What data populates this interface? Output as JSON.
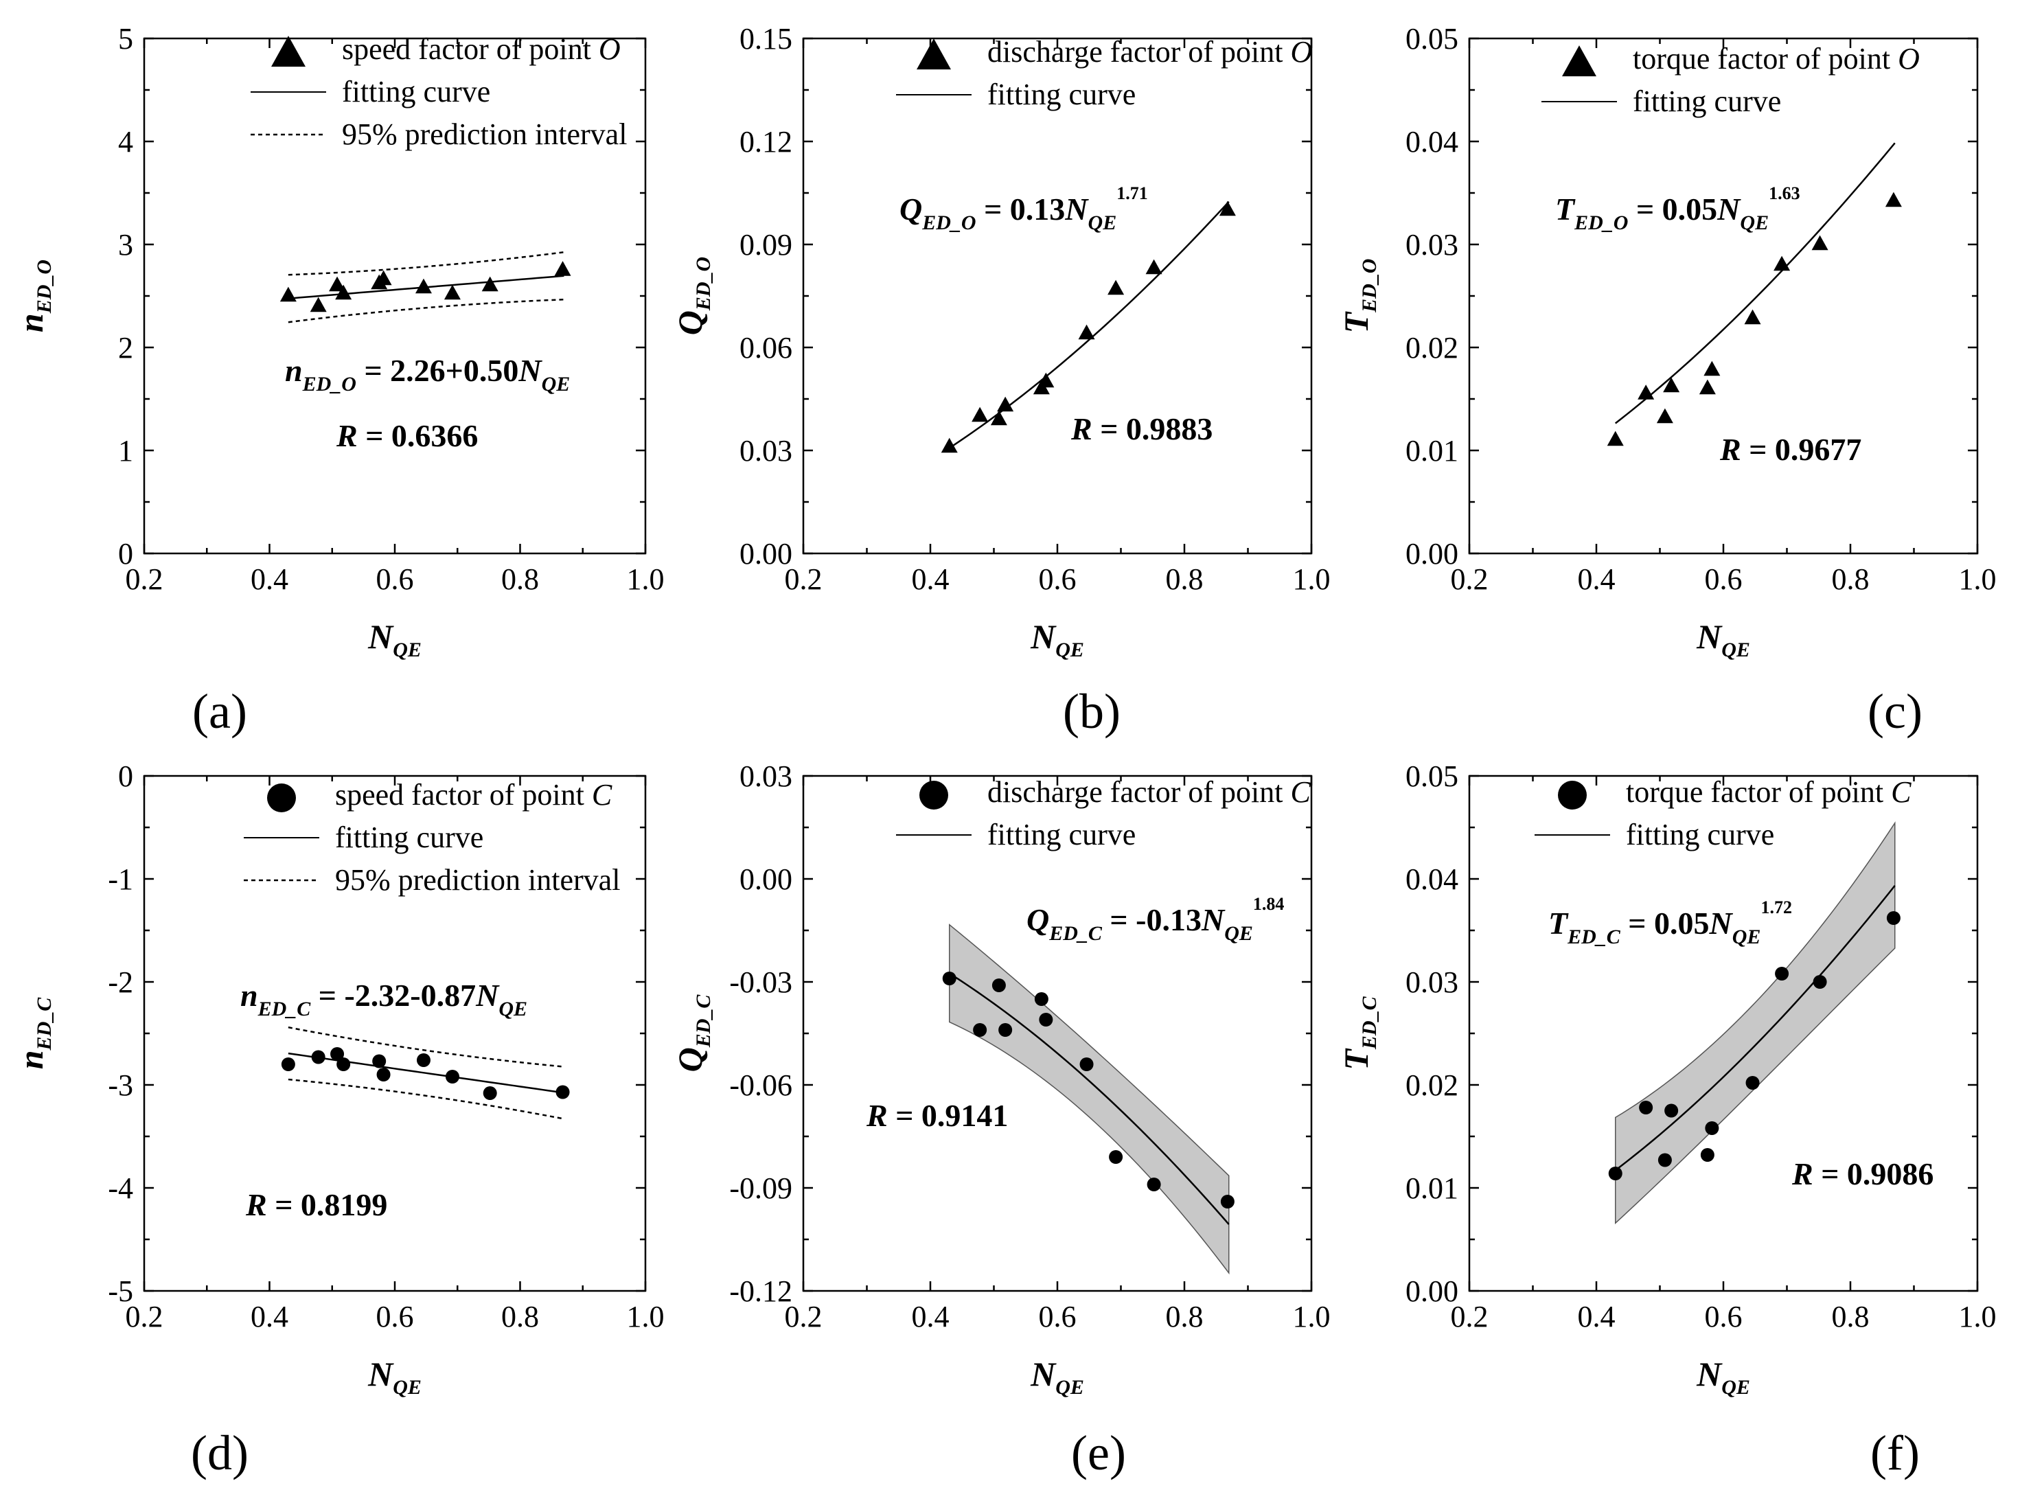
{
  "chart_data": [
    {
      "panel": "a",
      "type": "scatter",
      "panel_label": "(a)",
      "xlabel": "N",
      "xlabel_sub": "QE",
      "ylabel": "n",
      "ylabel_sub": "ED_O",
      "xlim": [
        0.2,
        1.0
      ],
      "ylim": [
        0,
        5
      ],
      "x_ticks": [
        "0.2",
        "0.4",
        "0.6",
        "0.8",
        "1.0"
      ],
      "y_ticks": [
        "0",
        "1",
        "2",
        "3",
        "4",
        "5"
      ],
      "marker": "triangle",
      "points": {
        "x": [
          0.43,
          0.478,
          0.508,
          0.518,
          0.575,
          0.582,
          0.646,
          0.692,
          0.752,
          0.868
        ],
        "y": [
          2.5,
          2.4,
          2.6,
          2.52,
          2.62,
          2.66,
          2.58,
          2.52,
          2.6,
          2.75
        ]
      },
      "fit": {
        "model": "linear",
        "a": 2.26,
        "b": 0.5,
        "x_range": [
          0.43,
          0.87
        ]
      },
      "band": {
        "style": "dashed",
        "half_width": [
          0.2,
          0.2
        ]
      },
      "legend": [
        {
          "symbol": "triangle",
          "text": "speed factor of point ",
          "italic": "O"
        },
        {
          "symbol": "line",
          "text": "fitting curve"
        },
        {
          "symbol": "dashed",
          "text": "95% prediction interval"
        }
      ],
      "equation": {
        "sym": "n",
        "sym_sub": "ED_O",
        "rhs": " = 2.26+0.50",
        "var": "N",
        "var_sub": "QE",
        "exp": ""
      },
      "r_label": "R",
      "r_text": " = 0.6366"
    },
    {
      "panel": "b",
      "type": "scatter",
      "panel_label": "(b)",
      "xlabel": "N",
      "xlabel_sub": "QE",
      "ylabel": "Q",
      "ylabel_sub": "ED_O",
      "xlim": [
        0.2,
        1.0
      ],
      "ylim": [
        0,
        0.15
      ],
      "x_ticks": [
        "0.2",
        "0.4",
        "0.6",
        "0.8",
        "1.0"
      ],
      "y_ticks": [
        "0.00",
        "0.03",
        "0.06",
        "0.09",
        "0.12",
        "0.15"
      ],
      "marker": "triangle",
      "points": {
        "x": [
          0.43,
          0.478,
          0.508,
          0.518,
          0.575,
          0.582,
          0.646,
          0.692,
          0.752,
          0.868
        ],
        "y": [
          0.031,
          0.04,
          0.039,
          0.043,
          0.048,
          0.05,
          0.064,
          0.077,
          0.083,
          0.1
        ]
      },
      "fit": {
        "model": "power",
        "a": 0.13,
        "b": 1.71,
        "x_range": [
          0.43,
          0.87
        ]
      },
      "band": null,
      "legend": [
        {
          "symbol": "triangle",
          "text": "discharge factor of point ",
          "italic": "O"
        },
        {
          "symbol": "line",
          "text": "fitting curve"
        }
      ],
      "equation": {
        "sym": "Q",
        "sym_sub": "ED_O",
        "rhs": " = 0.13",
        "var": "N",
        "var_sub": "QE",
        "exp": "1.71"
      },
      "r_label": "R",
      "r_text": " = 0.9883"
    },
    {
      "panel": "c",
      "type": "scatter",
      "panel_label": "(c)",
      "xlabel": "N",
      "xlabel_sub": "QE",
      "ylabel": "T",
      "ylabel_sub": "ED_O",
      "xlim": [
        0.2,
        1.0
      ],
      "ylim": [
        0,
        0.05
      ],
      "x_ticks": [
        "0.2",
        "0.4",
        "0.6",
        "0.8",
        "1.0"
      ],
      "y_ticks": [
        "0.00",
        "0.01",
        "0.02",
        "0.03",
        "0.04",
        "0.05"
      ],
      "marker": "triangle",
      "points": {
        "x": [
          0.43,
          0.478,
          0.508,
          0.518,
          0.575,
          0.582,
          0.646,
          0.692,
          0.752,
          0.868
        ],
        "y": [
          0.011,
          0.0155,
          0.0132,
          0.0162,
          0.016,
          0.0178,
          0.0228,
          0.028,
          0.03,
          0.0342
        ]
      },
      "fit": {
        "model": "power",
        "a": 0.05,
        "b": 1.63,
        "x_range": [
          0.43,
          0.87
        ]
      },
      "band": null,
      "legend": [
        {
          "symbol": "triangle",
          "text": "torque factor of point ",
          "italic": "O"
        },
        {
          "symbol": "line",
          "text": "fitting curve"
        }
      ],
      "equation": {
        "sym": "T",
        "sym_sub": "ED_O",
        "rhs": " = 0.05",
        "var": "N",
        "var_sub": "QE",
        "exp": "1.63"
      },
      "r_label": "R",
      "r_text": " = 0.9677"
    },
    {
      "panel": "d",
      "type": "scatter",
      "panel_label": "(d)",
      "xlabel": "N",
      "xlabel_sub": "QE",
      "ylabel": "n",
      "ylabel_sub": "ED_C",
      "xlim": [
        0.2,
        1.0
      ],
      "ylim": [
        -5,
        0
      ],
      "x_ticks": [
        "0.2",
        "0.4",
        "0.6",
        "0.8",
        "1.0"
      ],
      "y_ticks": [
        "-5",
        "-4",
        "-3",
        "-2",
        "-1",
        "0"
      ],
      "marker": "circle",
      "points": {
        "x": [
          0.43,
          0.478,
          0.508,
          0.518,
          0.575,
          0.582,
          0.646,
          0.692,
          0.752,
          0.868
        ],
        "y": [
          -2.8,
          -2.73,
          -2.7,
          -2.8,
          -2.77,
          -2.9,
          -2.76,
          -2.92,
          -3.08,
          -3.07
        ]
      },
      "fit": {
        "model": "linear",
        "a": -2.32,
        "b": -0.87,
        "x_range": [
          0.43,
          0.87
        ]
      },
      "band": {
        "style": "dashed",
        "half_width": [
          0.22,
          0.22
        ]
      },
      "legend": [
        {
          "symbol": "circle",
          "text": "speed factor of point ",
          "italic": "C"
        },
        {
          "symbol": "line",
          "text": "fitting curve"
        },
        {
          "symbol": "dashed",
          "text": "95% prediction interval"
        }
      ],
      "equation": {
        "sym": "n",
        "sym_sub": "ED_C",
        "rhs": " = -2.32-0.87",
        "var": "N",
        "var_sub": "QE",
        "exp": ""
      },
      "r_label": "R",
      "r_text": " = 0.8199"
    },
    {
      "panel": "e",
      "type": "scatter",
      "panel_label": "(e)",
      "xlabel": "N",
      "xlabel_sub": "QE",
      "ylabel": "Q",
      "ylabel_sub": "ED_C",
      "xlim": [
        0.2,
        1.0
      ],
      "ylim": [
        -0.12,
        0.03
      ],
      "x_ticks": [
        "0.2",
        "0.4",
        "0.6",
        "0.8",
        "1.0"
      ],
      "y_ticks": [
        "-0.12",
        "-0.09",
        "-0.06",
        "-0.03",
        "0.00",
        "0.03"
      ],
      "marker": "circle",
      "points": {
        "x": [
          0.43,
          0.478,
          0.508,
          0.518,
          0.575,
          0.582,
          0.646,
          0.692,
          0.752,
          0.868
        ],
        "y": [
          -0.029,
          -0.044,
          -0.031,
          -0.044,
          -0.035,
          -0.041,
          -0.054,
          -0.081,
          -0.089,
          -0.094
        ]
      },
      "fit": {
        "model": "power",
        "a": -0.13,
        "b": 1.84,
        "x_range": [
          0.43,
          0.87
        ]
      },
      "band": {
        "style": "shaded",
        "half_width": [
          0.0105,
          0.0105
        ]
      },
      "legend": [
        {
          "symbol": "circle",
          "text": "discharge factor of point ",
          "italic": "C"
        },
        {
          "symbol": "line",
          "text": "fitting curve"
        }
      ],
      "equation": {
        "sym": "Q",
        "sym_sub": "ED_C",
        "rhs": " = -0.13",
        "var": "N",
        "var_sub": "QE",
        "exp": "1.84"
      },
      "r_label": "R",
      "r_text": " = 0.9141"
    },
    {
      "panel": "f",
      "type": "scatter",
      "panel_label": "(f)",
      "xlabel": "N",
      "xlabel_sub": "QE",
      "ylabel": "T",
      "ylabel_sub": "ED_C",
      "xlim": [
        0.2,
        1.0
      ],
      "ylim": [
        0,
        0.05
      ],
      "x_ticks": [
        "0.2",
        "0.4",
        "0.6",
        "0.8",
        "1.0"
      ],
      "y_ticks": [
        "0.00",
        "0.01",
        "0.02",
        "0.03",
        "0.04",
        "0.05"
      ],
      "marker": "circle",
      "points": {
        "x": [
          0.43,
          0.478,
          0.508,
          0.518,
          0.575,
          0.582,
          0.646,
          0.692,
          0.752,
          0.868
        ],
        "y": [
          0.0114,
          0.0178,
          0.0127,
          0.0175,
          0.0132,
          0.0158,
          0.0202,
          0.0308,
          0.03,
          0.0362
        ]
      },
      "fit": {
        "model": "power",
        "a": 0.05,
        "b": 1.72,
        "x_range": [
          0.43,
          0.87
        ]
      },
      "band": {
        "style": "shaded",
        "half_width": [
          0.0038,
          0.0045
        ]
      },
      "legend": [
        {
          "symbol": "circle",
          "text": "torque factor of point ",
          "italic": "C"
        },
        {
          "symbol": "line",
          "text": "fitting curve"
        }
      ],
      "equation": {
        "sym": "T",
        "sym_sub": "ED_C",
        "rhs": " = 0.05",
        "var": "N",
        "var_sub": "QE",
        "exp": "1.72"
      },
      "r_label": "R",
      "r_text": " = 0.9086"
    }
  ]
}
